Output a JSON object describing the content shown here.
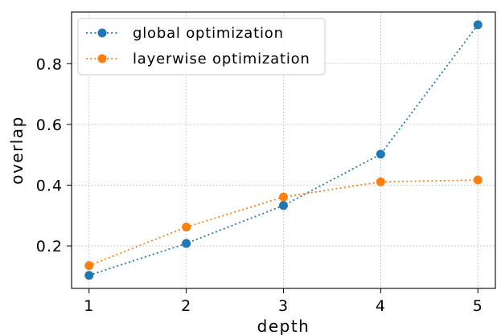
{
  "chart_data": {
    "type": "line",
    "xlabel": "depth",
    "ylabel": "overlap",
    "x": [
      1,
      2,
      3,
      4,
      5
    ],
    "xlim": [
      0.82,
      5.18
    ],
    "ylim": [
      0.06,
      0.97
    ],
    "xticks": [
      1,
      2,
      3,
      4,
      5
    ],
    "xtick_labels": [
      "1",
      "2",
      "3",
      "4",
      "5"
    ],
    "yticks": [
      0.2,
      0.4,
      0.6,
      0.8
    ],
    "ytick_labels": [
      "0.2",
      "0.4",
      "0.6",
      "0.8"
    ],
    "grid": true,
    "legend_position": "top-left",
    "series": [
      {
        "name": "global optimization",
        "color": "#1f77b4",
        "values": [
          0.103,
          0.208,
          0.333,
          0.502,
          0.928
        ]
      },
      {
        "name": "layerwise optimization",
        "color": "#ff7f0e",
        "values": [
          0.135,
          0.262,
          0.361,
          0.411,
          0.417
        ]
      }
    ]
  }
}
